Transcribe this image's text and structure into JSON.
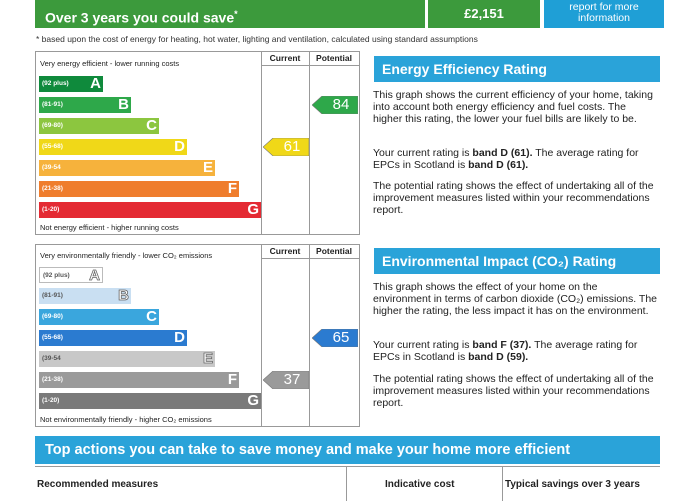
{
  "banner": {
    "text": "Over 3 years you could save",
    "mark": "*",
    "amount": "£2,151",
    "info": "report for more information"
  },
  "footnote": "* based upon the cost of energy for heating, hot water, lighting and ventilation, calculated using standard assumptions",
  "efficiency_chart": {
    "top_label": "Very energy efficient - lower running costs",
    "bottom_label": "Not energy efficient - higher running costs",
    "col_current": "Current",
    "col_potential": "Potential",
    "bands": [
      {
        "range": "(92 plus)",
        "letter": "A",
        "color": "#0f8a3c"
      },
      {
        "range": "(81-91)",
        "letter": "B",
        "color": "#2ea84a"
      },
      {
        "range": "(69-80)",
        "letter": "C",
        "color": "#8cc63f"
      },
      {
        "range": "(55-68)",
        "letter": "D",
        "color": "#f0d818"
      },
      {
        "range": "(39-54",
        "letter": "E",
        "color": "#f6b23c"
      },
      {
        "range": "(21-38)",
        "letter": "F",
        "color": "#ef7d2d"
      },
      {
        "range": "(1-20)",
        "letter": "G",
        "color": "#e42a33"
      }
    ],
    "current": {
      "value": "61",
      "band_index": 3,
      "color": "#f0d818"
    },
    "potential": {
      "value": "84",
      "band_index": 1,
      "color": "#2ea84a"
    }
  },
  "environment_chart": {
    "top_label": "Very environmentally friendly - lower CO₂ emissions",
    "bottom_label": "Not environmentally friendly - higher CO₂ emissions",
    "col_current": "Current",
    "col_potential": "Potential",
    "bands": [
      {
        "range": "(92 plus)",
        "letter": "A",
        "color": "#ffffff",
        "text": "#555"
      },
      {
        "range": "(81-91)",
        "letter": "B",
        "color": "#c9dff2",
        "text": "#555"
      },
      {
        "range": "(69-80)",
        "letter": "C",
        "color": "#3aa6dd",
        "text": "#fff"
      },
      {
        "range": "(55-68)",
        "letter": "D",
        "color": "#2b7bd0",
        "text": "#fff"
      },
      {
        "range": "(39-54",
        "letter": "E",
        "color": "#c8c8c8",
        "text": "#555"
      },
      {
        "range": "(21-38)",
        "letter": "F",
        "color": "#9a9a9a",
        "text": "#fff"
      },
      {
        "range": "(1-20)",
        "letter": "G",
        "color": "#7a7a7a",
        "text": "#fff"
      }
    ],
    "current": {
      "value": "37",
      "band_index": 5,
      "color": "#9a9a9a"
    },
    "potential": {
      "value": "65",
      "band_index": 3,
      "color": "#2b7bd0"
    }
  },
  "efficiency_panel": {
    "title": "Energy Efficiency Rating",
    "p1": "This graph shows the current efficiency of your home, taking into account both energy efficiency and fuel costs. The higher this rating, the lower your fuel bills are likely to be.",
    "p2_pre": "Your current rating is ",
    "p2_bold1": "band D (61).",
    "p2_mid": " The average rating for EPCs in Scotland is ",
    "p2_bold2": "band D (61).",
    "p3": "The potential rating shows the effect of undertaking all of the improvement measures listed within your recommendations report."
  },
  "environment_panel": {
    "title": "Environmental Impact (CO₂) Rating",
    "p1": "This graph shows the effect of your home on the environment in terms of carbon dioxide (CO₂) emissions. The higher the rating, the less impact it has on the environment.",
    "p2_pre": "Your current rating is ",
    "p2_bold1": "band F (37).",
    "p2_mid": " The average rating for EPCs in Scotland is ",
    "p2_bold2": "band D (59).",
    "p3": "The potential rating shows the effect of undertaking all of the improvement measures listed within your recommendations report."
  },
  "actions": {
    "title": "Top actions you can take to save money and make your home more efficient",
    "col1": "Recommended measures",
    "col2": "Indicative cost",
    "col3": "Typical savings over 3 years"
  }
}
